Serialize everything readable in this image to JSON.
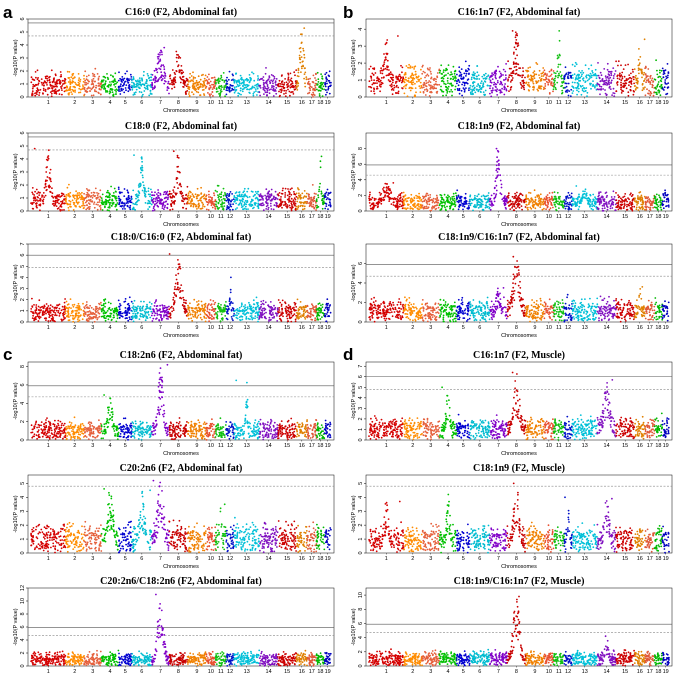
{
  "panel_letters": [
    "a",
    "b",
    "c",
    "d"
  ],
  "chart_data": [
    {
      "panel": "a",
      "type": "scatter",
      "title": "C16:0 (F2, Abdominal fat)",
      "xlabel": "Chromosomes",
      "ylabel": "-log10(P value)",
      "ylim": [
        0,
        6
      ],
      "yticks": [
        0,
        1,
        2,
        3,
        4,
        5,
        6
      ],
      "solid_threshold": 5.7,
      "dashed_threshold": 4.7,
      "categories": [
        "1",
        "2",
        "3",
        "4",
        "5",
        "6",
        "7",
        "8",
        "9",
        "10",
        "11",
        "12",
        "13",
        "14",
        "15",
        "16",
        "17",
        "18",
        "19"
      ],
      "baseline": 1.0,
      "peaks": [
        {
          "chromosome": "7",
          "max": 3.8,
          "width": 0.6
        },
        {
          "chromosome": "8",
          "max": 3.5,
          "width": 0.5
        },
        {
          "chromosome": "16",
          "max": 5.3,
          "width": 0.6
        }
      ]
    },
    {
      "panel": "a",
      "type": "scatter",
      "title": "C18:0 (F2, Abdominal fat)",
      "xlabel": "Chromosomes",
      "ylabel": "-log10(P value)",
      "ylim": [
        0,
        6
      ],
      "yticks": [
        0,
        1,
        2,
        3,
        4,
        5,
        6
      ],
      "solid_threshold": 5.7,
      "dashed_threshold": 4.7,
      "categories": [
        "1",
        "2",
        "3",
        "4",
        "5",
        "6",
        "7",
        "8",
        "9",
        "10",
        "11",
        "12",
        "13",
        "14",
        "15",
        "16",
        "17",
        "18",
        "19"
      ],
      "baseline": 0.9,
      "peaks": [
        {
          "chromosome": "1",
          "max": 4.8,
          "width": 0.2
        },
        {
          "chromosome": "6",
          "max": 4.3,
          "width": 0.3
        },
        {
          "chromosome": "8",
          "max": 4.6,
          "width": 0.3
        },
        {
          "chromosome": "18",
          "max": 4.2,
          "width": 0.3
        }
      ]
    },
    {
      "panel": "a",
      "type": "scatter",
      "title": "C18:0/C16:0 (F2, Abdominal fat)",
      "xlabel": "Chromosomes",
      "ylabel": "-log10(P value)",
      "ylim": [
        0,
        7
      ],
      "yticks": [
        0,
        1,
        2,
        3,
        4,
        5,
        6,
        7
      ],
      "solid_threshold": 6.0,
      "dashed_threshold": 4.9,
      "categories": [
        "1",
        "2",
        "3",
        "4",
        "5",
        "6",
        "7",
        "8",
        "9",
        "10",
        "11",
        "12",
        "13",
        "14",
        "15",
        "16",
        "17",
        "18",
        "19"
      ],
      "baseline": 1.0,
      "peaks": [
        {
          "chromosome": "8",
          "max": 6.1,
          "width": 0.5
        },
        {
          "chromosome": "12",
          "max": 4.0,
          "width": 0.3
        }
      ]
    },
    {
      "panel": "b",
      "type": "scatter",
      "title": "C16:1n7 (F2, Abdominal fat)",
      "xlabel": "Chromosomes",
      "ylabel": "-log10(P value)",
      "ylim": [
        0,
        4.6
      ],
      "yticks": [
        0,
        1,
        2,
        3,
        4
      ],
      "solid_threshold": null,
      "dashed_threshold": null,
      "categories": [
        "1",
        "2",
        "3",
        "4",
        "5",
        "6",
        "7",
        "8",
        "9",
        "10",
        "11",
        "12",
        "13",
        "14",
        "15",
        "16",
        "17",
        "18",
        "19"
      ],
      "baseline": 1.0,
      "peaks": [
        {
          "chromosome": "1",
          "max": 3.6,
          "width": 0.2
        },
        {
          "chromosome": "8",
          "max": 3.9,
          "width": 0.4
        },
        {
          "chromosome": "11",
          "max": 3.9,
          "width": 0.3
        },
        {
          "chromosome": "16",
          "max": 3.4,
          "width": 0.4
        }
      ]
    },
    {
      "panel": "b",
      "type": "scatter",
      "title": "C18:1n9 (F2, Abdominal fat)",
      "xlabel": "Chromosomes",
      "ylabel": "-log10(P value)",
      "ylim": [
        0,
        10
      ],
      "yticks": [
        0,
        2,
        4,
        6,
        8
      ],
      "solid_threshold": 5.9,
      "dashed_threshold": 4.6,
      "categories": [
        "1",
        "2",
        "3",
        "4",
        "5",
        "6",
        "7",
        "8",
        "9",
        "10",
        "11",
        "12",
        "13",
        "14",
        "15",
        "16",
        "17",
        "18",
        "19"
      ],
      "baseline": 1.2,
      "peaks": [
        {
          "chromosome": "1",
          "max": 3.6,
          "width": 0.4
        },
        {
          "chromosome": "7",
          "max": 8.0,
          "width": 0.4
        },
        {
          "chromosome": "13",
          "max": 3.2,
          "width": 0.3
        }
      ]
    },
    {
      "panel": "b",
      "type": "scatter",
      "title": "C18:1n9/C16:1n7 (F2, Abdominal fat)",
      "xlabel": "Chromosomes",
      "ylabel": "-log10(P value)",
      "ylim": [
        0,
        8
      ],
      "yticks": [
        0,
        2,
        4,
        6
      ],
      "solid_threshold": 5.9,
      "dashed_threshold": 4.7,
      "categories": [
        "1",
        "2",
        "3",
        "4",
        "5",
        "6",
        "7",
        "8",
        "9",
        "10",
        "11",
        "12",
        "13",
        "14",
        "15",
        "16",
        "17",
        "18",
        "19"
      ],
      "baseline": 1.2,
      "peaks": [
        {
          "chromosome": "7",
          "max": 3.5,
          "width": 0.4
        },
        {
          "chromosome": "8",
          "max": 6.7,
          "width": 0.5
        },
        {
          "chromosome": "16",
          "max": 3.6,
          "width": 0.3
        }
      ]
    },
    {
      "panel": "c",
      "type": "scatter",
      "title": "C18:2n6 (F2, Abdominal fat)",
      "xlabel": "Chromosomes",
      "ylabel": "-log10(P value)",
      "ylim": [
        0,
        8.5
      ],
      "yticks": [
        0,
        2,
        4,
        6,
        8
      ],
      "solid_threshold": 5.9,
      "dashed_threshold": 4.7,
      "categories": [
        "1",
        "2",
        "3",
        "4",
        "5",
        "6",
        "7",
        "8",
        "9",
        "10",
        "11",
        "12",
        "13",
        "14",
        "15",
        "16",
        "17",
        "18",
        "19"
      ],
      "baseline": 1.1,
      "peaks": [
        {
          "chromosome": "4",
          "max": 4.9,
          "width": 0.4
        },
        {
          "chromosome": "7",
          "max": 8.2,
          "width": 0.4
        },
        {
          "chromosome": "13",
          "max": 6.5,
          "width": 0.1
        }
      ]
    },
    {
      "panel": "c",
      "type": "scatter",
      "title": "C20:2n6 (F2, Abdominal fat)",
      "xlabel": "Chromosomes",
      "ylabel": "-log10(P value)",
      "ylim": [
        0,
        5.6
      ],
      "yticks": [
        0,
        1,
        2,
        3,
        4,
        5
      ],
      "solid_threshold": null,
      "dashed_threshold": 4.8,
      "categories": [
        "1",
        "2",
        "3",
        "4",
        "5",
        "6",
        "7",
        "8",
        "9",
        "10",
        "11",
        "12",
        "13",
        "14",
        "15",
        "16",
        "17",
        "18",
        "19"
      ],
      "baseline": 1.1,
      "peaks": [
        {
          "chromosome": "4",
          "max": 4.6,
          "width": 0.5
        },
        {
          "chromosome": "6",
          "max": 4.5,
          "width": 0.4
        },
        {
          "chromosome": "7",
          "max": 5.2,
          "width": 0.5
        },
        {
          "chromosome": "11",
          "max": 3.5,
          "width": 0.3
        }
      ]
    },
    {
      "panel": "c",
      "type": "scatter",
      "title": "C20:2n6/C18:2n6 (F2, Abdominal fat)",
      "xlabel": "Chromosomes",
      "ylabel": "-log10(P value)",
      "ylim": [
        0,
        12
      ],
      "yticks": [
        0,
        2,
        4,
        6,
        8,
        10,
        12
      ],
      "solid_threshold": 5.9,
      "dashed_threshold": 4.7,
      "categories": [
        "1",
        "2",
        "3",
        "4",
        "5",
        "6",
        "7",
        "8",
        "9",
        "10",
        "11",
        "12",
        "13",
        "14",
        "15",
        "16",
        "17",
        "18",
        "19"
      ],
      "baseline": 1.1,
      "peaks": [
        {
          "chromosome": "7",
          "max": 11.0,
          "width": 0.45
        }
      ]
    },
    {
      "panel": "d",
      "type": "scatter",
      "title": "C16:1n7 (F2, Muscle)",
      "xlabel": "Chromosomes",
      "ylabel": "-log10(P value)",
      "ylim": [
        0,
        7.4
      ],
      "yticks": [
        0,
        1,
        2,
        3,
        4,
        5,
        6,
        7
      ],
      "solid_threshold": 6.0,
      "dashed_threshold": 4.8,
      "categories": [
        "1",
        "2",
        "3",
        "4",
        "5",
        "6",
        "7",
        "8",
        "9",
        "10",
        "11",
        "12",
        "13",
        "14",
        "15",
        "16",
        "17",
        "18",
        "19"
      ],
      "baseline": 1.1,
      "peaks": [
        {
          "chromosome": "4",
          "max": 5.0,
          "width": 0.3
        },
        {
          "chromosome": "8",
          "max": 6.4,
          "width": 0.5
        },
        {
          "chromosome": "14",
          "max": 5.7,
          "width": 0.5
        }
      ]
    },
    {
      "panel": "d",
      "type": "scatter",
      "title": "C18:1n9 (F2, Muscle)",
      "xlabel": "Chromosomes",
      "ylabel": "-log10(P value)",
      "ylim": [
        0,
        5.6
      ],
      "yticks": [
        0,
        1,
        2,
        3,
        4,
        5
      ],
      "solid_threshold": null,
      "dashed_threshold": 4.8,
      "categories": [
        "1",
        "2",
        "3",
        "4",
        "5",
        "6",
        "7",
        "8",
        "9",
        "10",
        "11",
        "12",
        "13",
        "14",
        "15",
        "16",
        "17",
        "18",
        "19"
      ],
      "baseline": 1.0,
      "peaks": [
        {
          "chromosome": "1",
          "max": 3.7,
          "width": 0.2
        },
        {
          "chromosome": "4",
          "max": 4.2,
          "width": 0.3
        },
        {
          "chromosome": "8",
          "max": 5.0,
          "width": 0.4
        },
        {
          "chromosome": "12",
          "max": 4.0,
          "width": 0.3
        },
        {
          "chromosome": "14",
          "max": 3.9,
          "width": 0.4
        }
      ]
    },
    {
      "panel": "d",
      "type": "scatter",
      "title": "C18:1n9/C16:1n7 (F2, Muscle)",
      "xlabel": "Chromosomes",
      "ylabel": "-log10(P value)",
      "ylim": [
        0,
        11
      ],
      "yticks": [
        0,
        2,
        4,
        6,
        8,
        10
      ],
      "solid_threshold": 5.9,
      "dashed_threshold": 4.7,
      "categories": [
        "1",
        "2",
        "3",
        "4",
        "5",
        "6",
        "7",
        "8",
        "9",
        "10",
        "11",
        "12",
        "13",
        "14",
        "15",
        "16",
        "17",
        "18",
        "19"
      ],
      "baseline": 1.1,
      "peaks": [
        {
          "chromosome": "8",
          "max": 9.8,
          "width": 0.45
        },
        {
          "chromosome": "14",
          "max": 4.2,
          "width": 0.3
        }
      ]
    }
  ],
  "chromosome_colors": [
    "#d40000",
    "#ff8c00",
    "#e5603c",
    "#00c000",
    "#0000d0",
    "#00bcd0",
    "#8000c8",
    "#c80000",
    "#f08000",
    "#e85030",
    "#10c010",
    "#0010c8",
    "#00c0d8",
    "#8010c0",
    "#cc0000",
    "#e08000",
    "#e05838",
    "#00b800",
    "#0000c0"
  ],
  "threshold_solid_color": "#555555",
  "threshold_dashed_color": "#888888"
}
